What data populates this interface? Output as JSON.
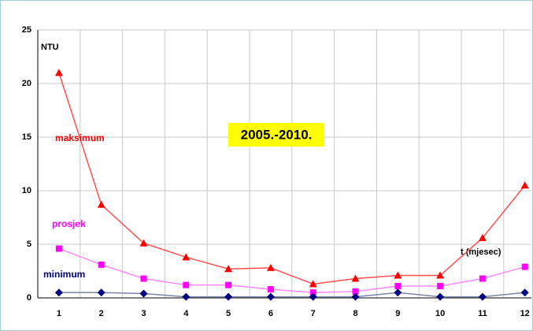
{
  "chart_data": {
    "type": "line",
    "annotation": "2005.-2010.",
    "y_label": "NTU",
    "x_label": "t (mjesec)",
    "categories": [
      "1",
      "2",
      "3",
      "4",
      "5",
      "6",
      "7",
      "8",
      "9",
      "10",
      "11",
      "12"
    ],
    "series": [
      {
        "name": "maksimum",
        "color": "#ff0000",
        "line_color": "#ff5050",
        "marker": "triangle",
        "values": [
          21,
          8.7,
          5.1,
          3.8,
          2.7,
          2.8,
          1.3,
          1.8,
          2.1,
          2.1,
          5.6,
          10.5
        ]
      },
      {
        "name": "prosjek",
        "color": "#ff00ff",
        "line_color": "#ff88ff",
        "marker": "square",
        "values": [
          4.6,
          3.1,
          1.8,
          1.2,
          1.2,
          0.8,
          0.5,
          0.6,
          1.1,
          1.1,
          1.8,
          2.9
        ]
      },
      {
        "name": "minimum",
        "color": "#000080",
        "line_color": "#7a86a8",
        "marker": "diamond",
        "values": [
          0.5,
          0.5,
          0.4,
          0.1,
          0.1,
          0.1,
          0.1,
          0.1,
          0.5,
          0.1,
          0.1,
          0.5
        ]
      }
    ],
    "ylim": [
      0,
      25
    ],
    "yticks": [
      0,
      5,
      10,
      15,
      20,
      25
    ],
    "grid": true
  }
}
